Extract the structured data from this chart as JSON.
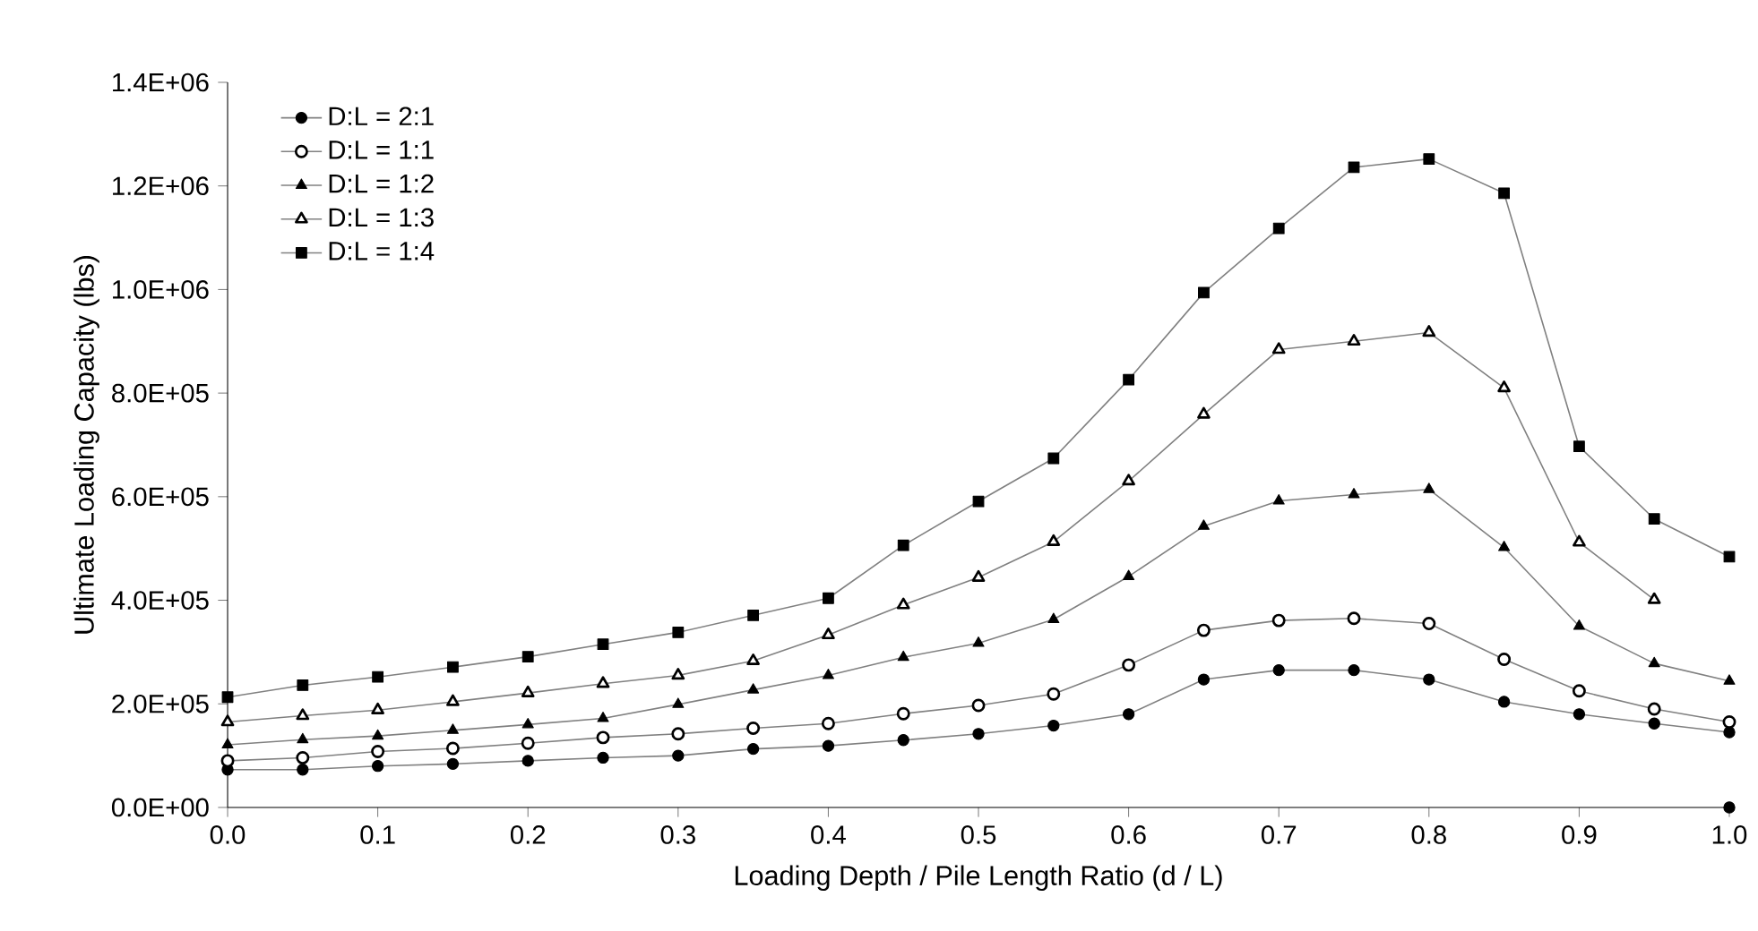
{
  "chart_data": {
    "type": "line",
    "xlabel": "Loading Depth / Pile Length Ratio (d / L)",
    "ylabel": "Ultimate Loading Capacity (lbs)",
    "x": [
      0,
      0.05,
      0.1,
      0.15,
      0.2,
      0.25,
      0.3,
      0.35,
      0.4,
      0.45,
      0.5,
      0.55,
      0.6,
      0.65,
      0.7,
      0.75,
      0.8,
      0.85,
      0.9,
      0.95,
      1.0
    ],
    "series": [
      {
        "name": "D:L = 2:1",
        "color": "#000000",
        "marker": "circle",
        "values": [
          73000,
          73000,
          80000,
          84000,
          90000,
          96000,
          100000,
          113000,
          119000,
          130000,
          142000,
          158000,
          180000,
          247000,
          265000,
          265000,
          247000,
          204000,
          180000,
          162000,
          145000
        ]
      },
      {
        "name": "D:L = 1:1",
        "color": "#000000",
        "marker": "circle-open",
        "values": [
          90000,
          96000,
          108000,
          114000,
          124000,
          135000,
          142000,
          153000,
          162000,
          181000,
          197000,
          219000,
          275000,
          342000,
          361000,
          365000,
          355000,
          286000,
          225000,
          190000,
          165000
        ]
      },
      {
        "name": "D:L = 1:2",
        "color": "#000000",
        "marker": "triangle",
        "values": [
          121000,
          131000,
          138000,
          149000,
          160000,
          172000,
          199000,
          227000,
          255000,
          290000,
          317000,
          363000,
          446000,
          543000,
          592000,
          604000,
          614000,
          502000,
          350000,
          278000,
          244000
        ]
      },
      {
        "name": "D:L = 1:3",
        "color": "#000000",
        "marker": "triangle-open",
        "values": [
          165000,
          177000,
          188000,
          204000,
          221000,
          239000,
          255000,
          283000,
          333000,
          391000,
          444000,
          513000,
          630000,
          759000,
          884000,
          900000,
          917000,
          810000,
          512000,
          401000,
          null
        ]
      },
      {
        "name": "D:L = 1:4",
        "color": "#000000",
        "marker": "square",
        "values": [
          213000,
          236000,
          252000,
          271000,
          291000,
          315000,
          338000,
          371000,
          404000,
          506000,
          591000,
          674000,
          826000,
          994000,
          1118000,
          1236000,
          1252000,
          1186000,
          697000,
          557000,
          484000
        ]
      },
      {
        "type": "scatter",
        "color": "#000000",
        "marker": "circle",
        "x": [
          1.0
        ],
        "values": [
          0
        ]
      }
    ],
    "xlim": [
      0,
      1.0
    ],
    "ylim": [
      0,
      1400000
    ],
    "xticks": [
      {
        "value": 0,
        "label": "0.0"
      },
      {
        "value": 0.1,
        "label": "0.1"
      },
      {
        "value": 0.2,
        "label": "0.2"
      },
      {
        "value": 0.3,
        "label": "0.3"
      },
      {
        "value": 0.4,
        "label": "0.4"
      },
      {
        "value": 0.5,
        "label": "0.5"
      },
      {
        "value": 0.6,
        "label": "0.6"
      },
      {
        "value": 0.7,
        "label": "0.7"
      },
      {
        "value": 0.8,
        "label": "0.8"
      },
      {
        "value": 0.9,
        "label": "0.9"
      },
      {
        "value": 1.0,
        "label": "1.0"
      }
    ],
    "yticks": [
      {
        "value": 0,
        "label": "0.0E+00"
      },
      {
        "value": 200000,
        "label": "2.0E+05"
      },
      {
        "value": 400000,
        "label": "4.0E+05"
      },
      {
        "value": 600000,
        "label": "6.0E+05"
      },
      {
        "value": 800000,
        "label": "8.0E+05"
      },
      {
        "value": 1000000,
        "label": "1.0E+06"
      },
      {
        "value": 1200000,
        "label": "1.2E+06"
      },
      {
        "value": 1400000,
        "label": "1.4E+06"
      }
    ],
    "grid": false,
    "legend": "top left"
  }
}
